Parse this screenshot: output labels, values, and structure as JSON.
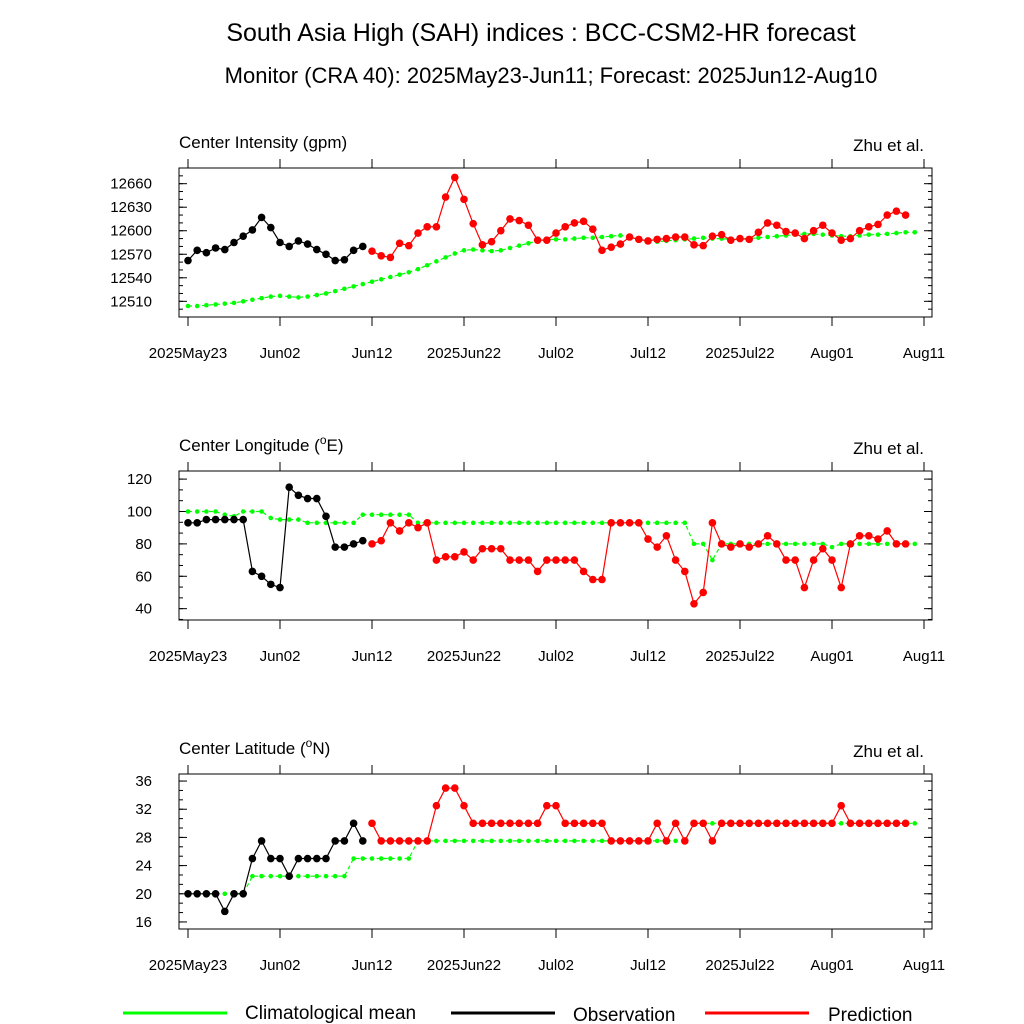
{
  "title": "South Asia High (SAH) indices : BCC-CSM2-HR forecast",
  "subtitle": "Monitor (CRA 40): 2025May23-Jun11; Forecast: 2025Jun12-Aug10",
  "credit": "Zhu et al.",
  "colors": {
    "climatology": "#00ff00",
    "observation": "#000000",
    "prediction": "#ff0000"
  },
  "x_ticks": [
    {
      "day": 0,
      "label": "2025May23"
    },
    {
      "day": 10,
      "label": "Jun02"
    },
    {
      "day": 20,
      "label": "Jun12"
    },
    {
      "day": 30,
      "label": "2025Jun22"
    },
    {
      "day": 40,
      "label": "Jul02"
    },
    {
      "day": 50,
      "label": "Jul12"
    },
    {
      "day": 60,
      "label": "2025Jul22"
    },
    {
      "day": 70,
      "label": "Aug01"
    },
    {
      "day": 80,
      "label": "Aug11"
    }
  ],
  "legend": {
    "climatology": "Climatological mean",
    "observation": "Observation",
    "prediction": "Prediction"
  },
  "chart_data": [
    {
      "type": "line",
      "title": "Center Intensity (gpm)",
      "xlim": [
        0,
        80
      ],
      "ylim": [
        12490,
        12680
      ],
      "yticks": [
        12510,
        12540,
        12570,
        12600,
        12630,
        12660
      ],
      "obs_start": 0,
      "pred_start": 20,
      "climatology": [
        12504,
        12504,
        12505,
        12506,
        12507,
        12508,
        12510,
        12512,
        12514,
        12516,
        12517,
        12516,
        12515,
        12516,
        12518,
        12520,
        12523,
        12526,
        12529,
        12532,
        12535,
        12538,
        12541,
        12544,
        12547,
        12551,
        12556,
        12561,
        12566,
        12571,
        12575,
        12576,
        12575,
        12574,
        12575,
        12578,
        12581,
        12584,
        12587,
        12589,
        12589,
        12589,
        12590,
        12591,
        12591,
        12592,
        12593,
        12594,
        12592,
        12589,
        12587,
        12586,
        12587,
        12588,
        12589,
        12590,
        12591,
        12590,
        12590,
        12589,
        12590,
        12590,
        12591,
        12592,
        12593,
        12594,
        12595,
        12596,
        12596,
        12595,
        12594,
        12593,
        12593,
        12594,
        12595,
        12595,
        12596,
        12597,
        12598,
        12598
      ],
      "observation": [
        12562,
        12575,
        12572,
        12578,
        12576,
        12585,
        12593,
        12601,
        12617,
        12604,
        12585,
        12580,
        12587,
        12583,
        12576,
        12570,
        12562,
        12563,
        12575,
        12580
      ],
      "prediction": [
        12574,
        12568,
        12566,
        12584,
        12581,
        12597,
        12605,
        12605,
        12643,
        12668,
        12640,
        12609,
        12582,
        12586,
        12600,
        12615,
        12613,
        12607,
        12588,
        12588,
        12597,
        12605,
        12610,
        12612,
        12602,
        12575,
        12579,
        12583,
        12592,
        12589,
        12587,
        12589,
        12590,
        12592,
        12592,
        12582,
        12581,
        12593,
        12595,
        12588,
        12590,
        12589,
        12598,
        12610,
        12607,
        12599,
        12597,
        12590,
        12600,
        12607,
        12597,
        12588,
        12590,
        12600,
        12605,
        12608,
        12620,
        12625,
        12620
      ]
    },
    {
      "type": "line",
      "title": "Center Longitude (",
      "title_sup": "o",
      "title_after": "E)",
      "xlim": [
        0,
        80
      ],
      "ylim": [
        33,
        125
      ],
      "yticks": [
        40,
        60,
        80,
        100,
        120
      ],
      "obs_start": 0,
      "pred_start": 20,
      "climatology": [
        100,
        100,
        100,
        100,
        98,
        97,
        100,
        100,
        100,
        96,
        95,
        95,
        95,
        93,
        93,
        93,
        93,
        93,
        93,
        98,
        98,
        98,
        98,
        98,
        98,
        93,
        93,
        93,
        93,
        93,
        93,
        93,
        93,
        93,
        93,
        93,
        93,
        93,
        93,
        93,
        93,
        93,
        93,
        93,
        93,
        93,
        93,
        93,
        93,
        93,
        93,
        93,
        93,
        93,
        93,
        80,
        80,
        70,
        80,
        80,
        80,
        80,
        80,
        80,
        80,
        80,
        80,
        80,
        80,
        80,
        78,
        80,
        80,
        80,
        80,
        80,
        80,
        80,
        80,
        80
      ],
      "observation": [
        93,
        93,
        95,
        95,
        95,
        95,
        95,
        63,
        60,
        55,
        53,
        115,
        110,
        108,
        108,
        97,
        78,
        78,
        80,
        82
      ],
      "prediction": [
        80,
        82,
        93,
        88,
        93,
        90,
        93,
        70,
        72,
        72,
        75,
        70,
        77,
        77,
        77,
        70,
        70,
        70,
        63,
        70,
        70,
        70,
        70,
        63,
        58,
        58,
        93,
        93,
        93,
        93,
        83,
        78,
        85,
        70,
        63,
        43,
        50,
        93,
        80,
        78,
        80,
        78,
        80,
        85,
        80,
        70,
        70,
        53,
        70,
        77,
        70,
        53,
        80,
        85,
        85,
        83,
        88,
        80,
        80
      ]
    },
    {
      "type": "line",
      "title": "Center Latitude (",
      "title_sup": "o",
      "title_after": "N)",
      "xlim": [
        0,
        80
      ],
      "ylim": [
        15,
        37
      ],
      "yticks": [
        16,
        20,
        24,
        28,
        32,
        36
      ],
      "obs_start": 0,
      "pred_start": 20,
      "climatology": [
        20,
        20,
        20,
        20,
        20,
        20,
        20,
        22.5,
        22.5,
        22.5,
        22.5,
        22.5,
        22.5,
        22.5,
        22.5,
        22.5,
        22.5,
        22.5,
        25,
        25,
        25,
        25,
        25,
        25,
        25,
        27.5,
        27.5,
        27.5,
        27.5,
        27.5,
        27.5,
        27.5,
        27.5,
        27.5,
        27.5,
        27.5,
        27.5,
        27.5,
        27.5,
        27.5,
        27.5,
        27.5,
        27.5,
        27.5,
        27.5,
        27.5,
        27.5,
        27.5,
        27.5,
        27.5,
        27.5,
        27.5,
        27.5,
        27.5,
        27.5,
        30,
        30,
        30,
        30,
        30,
        30,
        30,
        30,
        30,
        30,
        30,
        30,
        30,
        30,
        30,
        30,
        30,
        30,
        30,
        30,
        30,
        30,
        30,
        30,
        30
      ],
      "observation": [
        20,
        20,
        20,
        20,
        17.5,
        20,
        20,
        25,
        27.5,
        25,
        25,
        22.5,
        25,
        25,
        25,
        25,
        27.5,
        27.5,
        30,
        27.5
      ],
      "prediction": [
        30,
        27.5,
        27.5,
        27.5,
        27.5,
        27.5,
        27.5,
        32.5,
        35,
        35,
        32.5,
        30,
        30,
        30,
        30,
        30,
        30,
        30,
        30,
        32.5,
        32.5,
        30,
        30,
        30,
        30,
        30,
        27.5,
        27.5,
        27.5,
        27.5,
        27.5,
        30,
        27.5,
        30,
        27.5,
        30,
        30,
        27.5,
        30,
        30,
        30,
        30,
        30,
        30,
        30,
        30,
        30,
        30,
        30,
        30,
        30,
        32.5,
        30,
        30,
        30,
        30,
        30,
        30,
        30
      ]
    }
  ]
}
